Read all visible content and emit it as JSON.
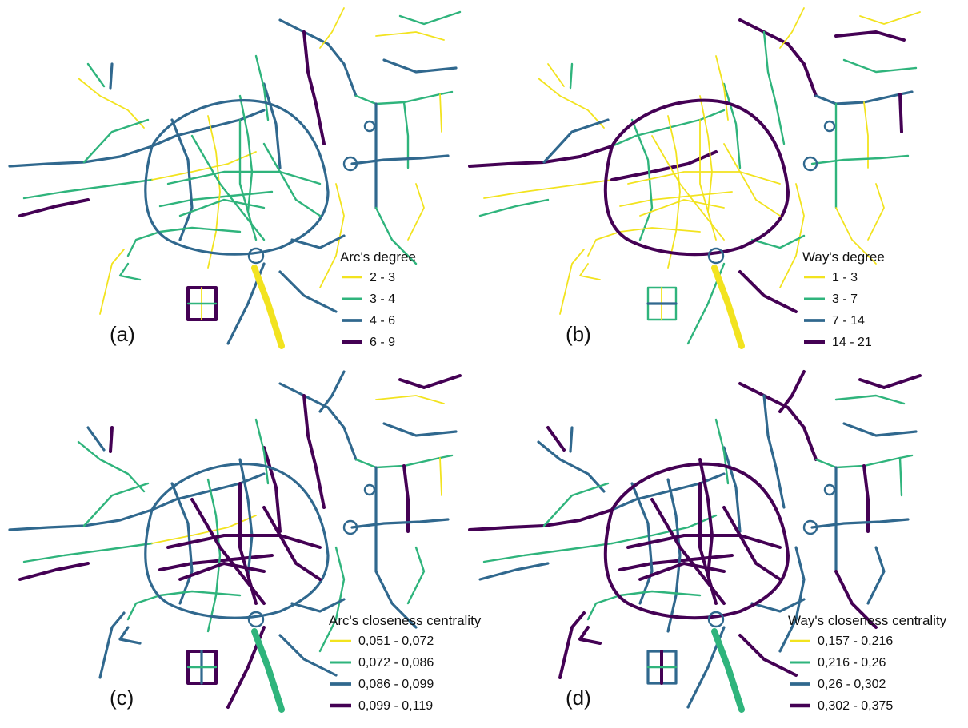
{
  "colors": {
    "c1": "#f2e31f",
    "c2": "#2fb47c",
    "c3": "#30688e",
    "c4": "#440154"
  },
  "panels": [
    {
      "label": "(a)",
      "legend_title": "Arc's degree",
      "classes": [
        "2 - 3",
        "3 - 4",
        "4 - 6",
        "6 - 9"
      ],
      "palette": [
        0,
        1,
        2,
        2,
        1,
        3,
        0,
        1,
        2,
        1,
        0,
        2
      ],
      "ring_class": 2,
      "radial_class": 1,
      "highway_class": 0
    },
    {
      "label": "(b)",
      "legend_title": "Way's degree",
      "classes": [
        "1 - 3",
        "3 - 7",
        "7 - 14",
        "14 - 21"
      ],
      "palette": [
        0,
        0,
        1,
        3,
        0,
        1,
        0,
        2,
        1,
        0,
        3,
        1
      ],
      "ring_class": 3,
      "radial_class": 0,
      "highway_class": 0
    },
    {
      "label": "(c)",
      "legend_title": "Arc's closeness centrality",
      "classes": [
        "0,051 - 0,072",
        "0,072 - 0,086",
        "0,086 - 0,099",
        "0,099 - 0,119"
      ],
      "palette": [
        1,
        2,
        3,
        2,
        1,
        3,
        2,
        1,
        2,
        3,
        0,
        2
      ],
      "ring_class": 2,
      "radial_class": 3,
      "highway_class": 1
    },
    {
      "label": "(d)",
      "legend_title": "Way's closeness centrality",
      "classes": [
        "0,157 - 0,216",
        "0,216 - 0,26",
        "0,26 - 0,302",
        "0,302 - 0,375"
      ],
      "palette": [
        2,
        3,
        2,
        3,
        1,
        2,
        3,
        1,
        2,
        3,
        1,
        2
      ],
      "ring_class": 3,
      "radial_class": 3,
      "highway_class": 1
    }
  ]
}
